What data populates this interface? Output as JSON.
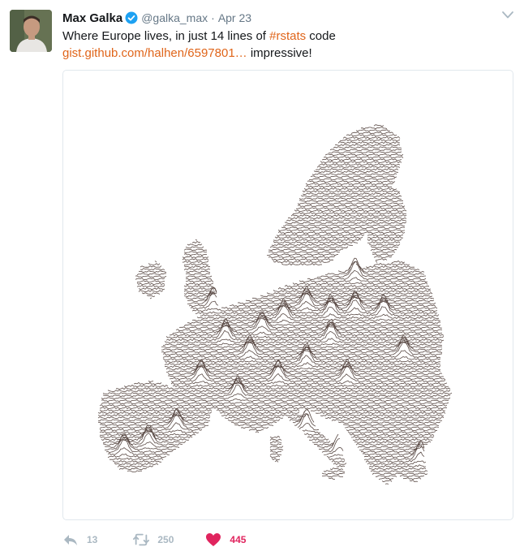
{
  "tweet": {
    "author": {
      "name": "Max Galka",
      "handle": "@galka_max",
      "verified": true,
      "avatar_icon": "user-avatar-photo"
    },
    "separator": "·",
    "date": "Apr 23",
    "text": {
      "line1_prefix": "Where Europe lives, in just 14 lines of ",
      "hashtag": "#rstats",
      "line1_suffix": " code",
      "link": "gist.github.com/halhen/6597801…",
      "line2_suffix": " impressive!"
    },
    "media": {
      "kind": "image",
      "subject_icon": "europe-population-ridgeline-map"
    },
    "actions": {
      "reply_count": "13",
      "retweet_count": "250",
      "like_count": "445",
      "liked": true
    },
    "colors": {
      "link": "#e0651a",
      "verified": "#1da1f2",
      "like": "#e0245e",
      "muted": "#657786",
      "map_line": "#5a4a45"
    }
  }
}
